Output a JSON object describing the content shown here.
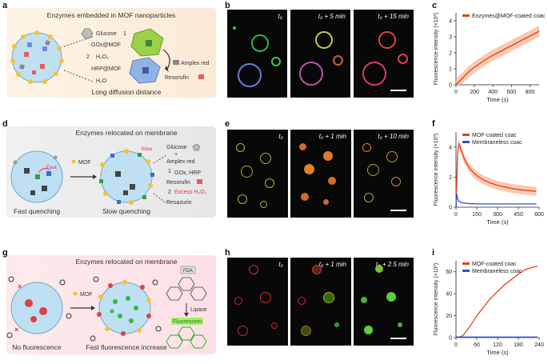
{
  "panels": {
    "a": {
      "label": "a",
      "title": "Enzymes embedded in MOF nanoparticles",
      "glucose": "Glucose",
      "gox": "GOx@MOF",
      "h2o2": "H₂O₂",
      "hrp": "HRP@MOF",
      "h2o": "H₂O",
      "amplex": "Amplex red",
      "resorufin": "Resorufin",
      "footer": "Long diffusion distance",
      "step1": "1",
      "step2": "2"
    },
    "b": {
      "label": "b",
      "times": [
        "t₀",
        "t₀ + 5 min",
        "t₀ + 15 min"
      ]
    },
    "c": {
      "label": "c"
    },
    "d": {
      "label": "d",
      "title": "Enzymes relocated on membrane",
      "fast": "Fast",
      "slow": "Slow",
      "mof": "MOF",
      "glucose": "Glucose",
      "plus": "+",
      "amplex": "Amplex red",
      "step1": "1",
      "step1_text": "GOx, HRP",
      "resorufin": "Resorufin",
      "step2": "2",
      "step2_text": "Excess H₂O₂",
      "resazurin": "Resazurin",
      "left_caption": "Fast quenching",
      "right_caption": "Slow quenching"
    },
    "e": {
      "label": "e",
      "times": [
        "t₀",
        "t₀ + 1 min",
        "t₀ + 10 min"
      ]
    },
    "f": {
      "label": "f"
    },
    "g": {
      "label": "g",
      "title": "Enzymes relocated on membrane",
      "mof": "MOF",
      "fda": "FDA",
      "lipase": "Lipase",
      "fluorescein": "Fluorescein",
      "left_caption": "No fluorescence",
      "right_caption": "Fast fluorescence increase"
    },
    "h": {
      "label": "h",
      "times": [
        "t₀",
        "t₀ + 1 min",
        "t₀ + 2.5 min"
      ]
    },
    "i": {
      "label": "i"
    }
  },
  "colors": {
    "coated": "#e8401c",
    "membraneless": "#3050d0",
    "band": "#f7b48f"
  },
  "chart_data": [
    {
      "id": "c",
      "type": "line",
      "xlabel": "Time (s)",
      "ylabel": "Fluorescence intensity (×10³)",
      "xlim": [
        0,
        900
      ],
      "ylim": [
        0,
        4.5
      ],
      "xticks": [
        0,
        200,
        400,
        600,
        800
      ],
      "yticks": [
        0,
        1,
        2,
        3,
        4
      ],
      "legend": "top-right",
      "series": [
        {
          "name": "Enzymes@MOF-coated coac",
          "x": [
            0,
            50,
            100,
            150,
            200,
            250,
            300,
            350,
            400,
            450,
            500,
            550,
            600,
            650,
            700,
            750,
            800,
            850,
            900
          ],
          "y": [
            0,
            0.3,
            0.6,
            0.88,
            1.1,
            1.3,
            1.5,
            1.68,
            1.85,
            2.0,
            2.15,
            2.3,
            2.45,
            2.6,
            2.75,
            2.9,
            3.05,
            3.2,
            3.35
          ],
          "band": 0.35
        }
      ]
    },
    {
      "id": "f",
      "type": "line",
      "xlabel": "Time (s)",
      "ylabel": "Fluorescence intensity (×10³)",
      "xlim": [
        0,
        600
      ],
      "ylim": [
        0,
        5
      ],
      "xticks": [
        0,
        150,
        300,
        450,
        600
      ],
      "yticks": [
        0,
        2,
        4
      ],
      "legend": "top-right",
      "series": [
        {
          "name": "MOF-coated coac",
          "x": [
            0,
            5,
            10,
            15,
            20,
            30,
            45,
            60,
            90,
            120,
            150,
            200,
            250,
            300,
            350,
            400,
            450,
            500,
            550,
            580
          ],
          "y": [
            0,
            1.5,
            3.0,
            3.9,
            4.2,
            4.0,
            3.6,
            3.2,
            2.7,
            2.35,
            2.1,
            1.8,
            1.6,
            1.45,
            1.35,
            1.25,
            1.18,
            1.12,
            1.08,
            1.05
          ],
          "band": 0.3
        },
        {
          "name": "Membraneless coac",
          "x": [
            0,
            5,
            10,
            20,
            40,
            80,
            150,
            300,
            450,
            580
          ],
          "y": [
            0,
            0.9,
            0.6,
            0.4,
            0.3,
            0.25,
            0.22,
            0.22,
            0.22,
            0.22
          ]
        }
      ]
    },
    {
      "id": "i",
      "type": "line",
      "xlabel": "Time (s)",
      "ylabel": "Fluorescence intensity (×10³)",
      "xlim": [
        0,
        240
      ],
      "ylim": [
        0,
        70
      ],
      "xticks": [
        0,
        60,
        120,
        180,
        240
      ],
      "yticks": [
        0,
        20,
        40,
        60
      ],
      "legend": "top-right",
      "series": [
        {
          "name": "MOF-coated coac",
          "x": [
            0,
            10,
            20,
            40,
            60,
            80,
            100,
            120,
            140,
            160,
            180,
            200,
            220,
            235
          ],
          "y": [
            0,
            0.5,
            2,
            10,
            20,
            28,
            36,
            42,
            48,
            53,
            58,
            62,
            64,
            65
          ]
        },
        {
          "name": "Membraneless coac",
          "x": [
            0,
            235
          ],
          "y": [
            0.5,
            0.5
          ]
        }
      ]
    }
  ]
}
